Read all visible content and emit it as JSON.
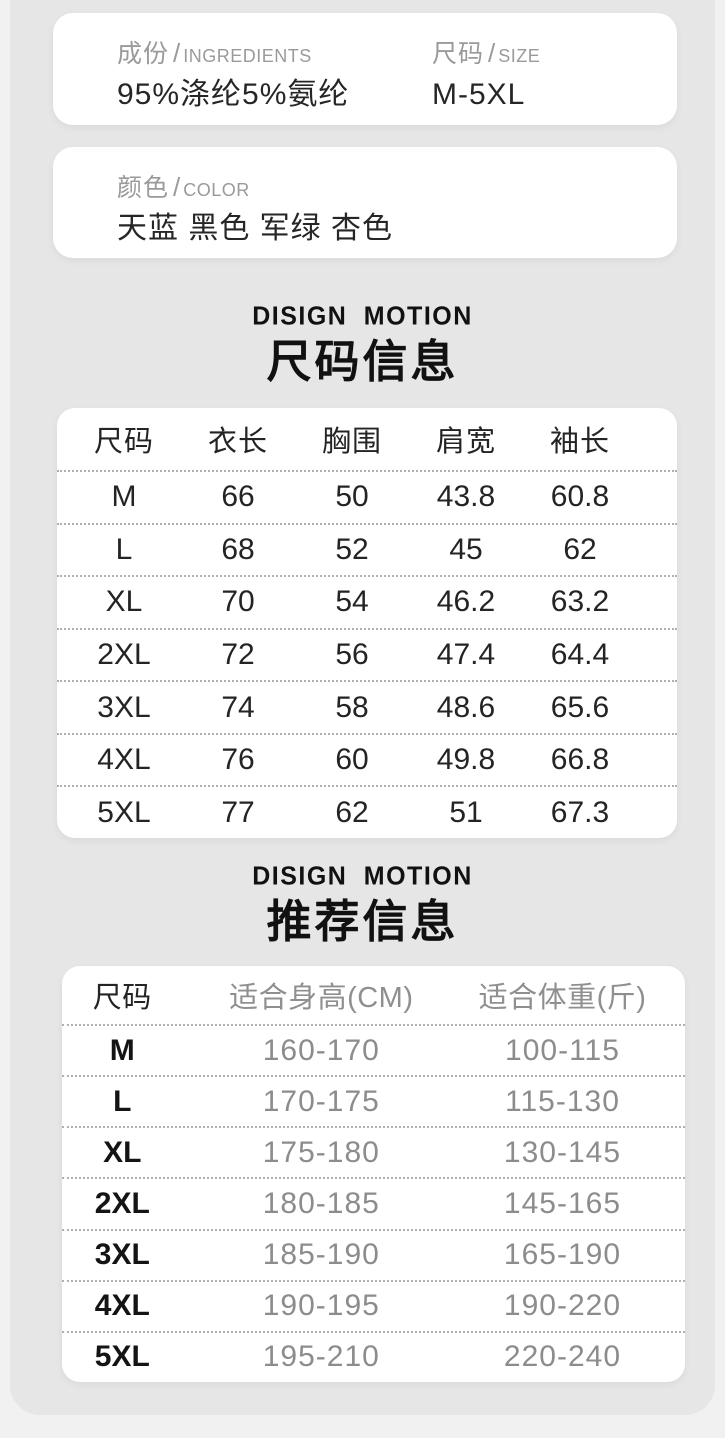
{
  "colors": {
    "page_bg": "#f1f1f2",
    "panel_bg": "#e6e6e7",
    "card_bg": "#ffffff",
    "text_dark": "#1f1f1f",
    "label_gray": "#9a9a9a",
    "value_gray": "#8c8c8c",
    "dotted_line": "#b0b0b0"
  },
  "info_cards": {
    "card1": {
      "fields": [
        {
          "label_zh": "成份",
          "label_en": "INGREDIENTS",
          "value": "95%涤纶5%氨纶"
        },
        {
          "label_zh": "尺码",
          "label_en": "SIZE",
          "value": "M-5XL"
        }
      ]
    },
    "card2": {
      "fields": [
        {
          "label_zh": "颜色",
          "label_en": "COLOR",
          "value": "天蓝 黑色 军绿 杏色"
        }
      ]
    }
  },
  "sections": [
    {
      "brand": "DISIGN MOTION",
      "title": "尺码信息",
      "table": {
        "headers": [
          "尺码",
          "衣长",
          "胸围",
          "肩宽",
          "袖长"
        ],
        "rows": [
          [
            "M",
            "66",
            "50",
            "43.8",
            "60.8"
          ],
          [
            "L",
            "68",
            "52",
            "45",
            "62"
          ],
          [
            "XL",
            "70",
            "54",
            "46.2",
            "63.2"
          ],
          [
            "2XL",
            "72",
            "56",
            "47.4",
            "64.4"
          ],
          [
            "3XL",
            "74",
            "58",
            "48.6",
            "65.6"
          ],
          [
            "4XL",
            "76",
            "60",
            "49.8",
            "66.8"
          ],
          [
            "5XL",
            "77",
            "62",
            "51",
            "67.3"
          ]
        ]
      }
    },
    {
      "brand": "DISIGN MOTION",
      "title": "推荐信息",
      "table": {
        "headers": [
          "尺码",
          "适合身高(CM)",
          "适合体重(斤)"
        ],
        "rows": [
          [
            "M",
            "160-170",
            "100-115"
          ],
          [
            "L",
            "170-175",
            "115-130"
          ],
          [
            "XL",
            "175-180",
            "130-145"
          ],
          [
            "2XL",
            "180-185",
            "145-165"
          ],
          [
            "3XL",
            "185-190",
            "165-190"
          ],
          [
            "4XL",
            "190-195",
            "190-220"
          ],
          [
            "5XL",
            "195-210",
            "220-240"
          ]
        ]
      }
    }
  ]
}
